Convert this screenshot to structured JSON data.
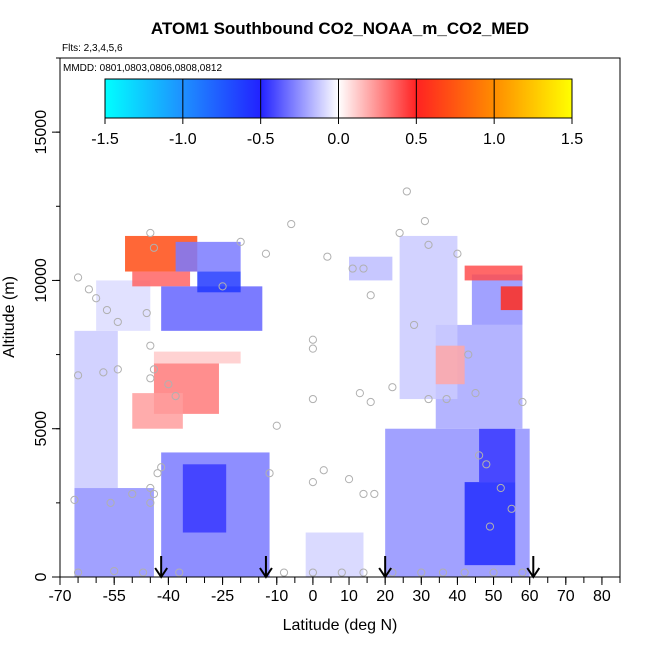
{
  "chart_data": {
    "type": "heatmap",
    "title": "ATOM1 Southbound CO2_NOAA_m_CO2_MED",
    "flights_label": "Flts: 2,3,4,5,6",
    "dates_label": "MMDD: 0801,0803,0806,0808,0812",
    "xlabel": "Latitude (deg N)",
    "ylabel": "Altitude (m)",
    "xlim": [
      -70,
      85
    ],
    "ylim": [
      0,
      17500
    ],
    "x_ticks": [
      -70,
      -55,
      -40,
      -25,
      -10,
      0,
      10,
      20,
      30,
      40,
      50,
      60,
      70,
      80
    ],
    "x_tick_labels": [
      "-70",
      "-55",
      "-40",
      "-25",
      "-10",
      "0",
      "10",
      "20",
      "30",
      "40",
      "50",
      "60",
      "70",
      "80"
    ],
    "y_ticks": [
      0,
      5000,
      10000,
      15000
    ],
    "y_tick_labels": [
      "0",
      "5000",
      "10000",
      "15000"
    ],
    "colorbar": {
      "range": [
        -1.5,
        1.5
      ],
      "ticks": [
        -1.5,
        -1.0,
        -0.5,
        0.0,
        0.5,
        1.0,
        1.5
      ],
      "tick_labels": [
        "-1.5",
        "-1.0",
        "-0.5",
        "0.0",
        "0.5",
        "1.0",
        "1.5"
      ],
      "stops": [
        {
          "v": -1.5,
          "color": "#00ffff"
        },
        {
          "v": -1.0,
          "color": "#1e90ff"
        },
        {
          "v": -0.5,
          "color": "#2222ff"
        },
        {
          "v": 0.0,
          "color": "#ffffff"
        },
        {
          "v": 0.5,
          "color": "#ff2222"
        },
        {
          "v": 1.0,
          "color": "#ff8c00"
        },
        {
          "v": 1.5,
          "color": "#ffff00"
        }
      ]
    },
    "regions": [
      {
        "lat": [
          -66,
          -44
        ],
        "alt": [
          0,
          3000
        ],
        "value": -0.25
      },
      {
        "lat": [
          -66,
          -54
        ],
        "alt": [
          3000,
          8300
        ],
        "value": -0.12
      },
      {
        "lat": [
          -60,
          -45
        ],
        "alt": [
          8300,
          10000
        ],
        "value": -0.08
      },
      {
        "lat": [
          -52,
          -32
        ],
        "alt": [
          10300,
          11500
        ],
        "value": 0.7
      },
      {
        "lat": [
          -50,
          -34
        ],
        "alt": [
          9800,
          10300
        ],
        "value": 0.35
      },
      {
        "lat": [
          -42,
          -14
        ],
        "alt": [
          8300,
          9800
        ],
        "value": -0.35
      },
      {
        "lat": [
          -32,
          -20
        ],
        "alt": [
          9600,
          10300
        ],
        "value": -0.6
      },
      {
        "lat": [
          -38,
          -20
        ],
        "alt": [
          10300,
          11300
        ],
        "value": -0.3
      },
      {
        "lat": [
          -44,
          -26
        ],
        "alt": [
          5500,
          7200
        ],
        "value": 0.3
      },
      {
        "lat": [
          -50,
          -36
        ],
        "alt": [
          5000,
          6200
        ],
        "value": 0.22
      },
      {
        "lat": [
          -44,
          -20
        ],
        "alt": [
          7200,
          7600
        ],
        "value": 0.12
      },
      {
        "lat": [
          -42,
          -12
        ],
        "alt": [
          0,
          4200
        ],
        "value": -0.3
      },
      {
        "lat": [
          -36,
          -24
        ],
        "alt": [
          1500,
          3800
        ],
        "value": -0.45
      },
      {
        "lat": [
          -2,
          14
        ],
        "alt": [
          0,
          1500
        ],
        "value": -0.1
      },
      {
        "lat": [
          20,
          60
        ],
        "alt": [
          0,
          5000
        ],
        "value": -0.25
      },
      {
        "lat": [
          42,
          56
        ],
        "alt": [
          400,
          3200
        ],
        "value": -0.55
      },
      {
        "lat": [
          46,
          56
        ],
        "alt": [
          3200,
          5000
        ],
        "value": -0.45
      },
      {
        "lat": [
          34,
          58
        ],
        "alt": [
          5000,
          8500
        ],
        "value": -0.2
      },
      {
        "lat": [
          44,
          58
        ],
        "alt": [
          8500,
          10200
        ],
        "value": -0.25
      },
      {
        "lat": [
          42,
          58
        ],
        "alt": [
          10000,
          10500
        ],
        "value": 0.4
      },
      {
        "lat": [
          52,
          58
        ],
        "alt": [
          9000,
          9800
        ],
        "value": 0.55
      },
      {
        "lat": [
          24,
          40
        ],
        "alt": [
          6000,
          11500
        ],
        "value": -0.12
      },
      {
        "lat": [
          34,
          42
        ],
        "alt": [
          6500,
          7800
        ],
        "value": 0.2
      },
      {
        "lat": [
          10,
          22
        ],
        "alt": [
          10000,
          10800
        ],
        "value": -0.15
      }
    ],
    "observations": [
      {
        "lat": -65,
        "alt": 10100
      },
      {
        "lat": -62,
        "alt": 9700
      },
      {
        "lat": -60,
        "alt": 9400
      },
      {
        "lat": -57,
        "alt": 9000
      },
      {
        "lat": -54,
        "alt": 8600
      },
      {
        "lat": -58,
        "alt": 6900
      },
      {
        "lat": -54,
        "alt": 7000
      },
      {
        "lat": -65,
        "alt": 6800
      },
      {
        "lat": -45,
        "alt": 11600
      },
      {
        "lat": -44,
        "alt": 11100
      },
      {
        "lat": -46,
        "alt": 8900
      },
      {
        "lat": -45,
        "alt": 7800
      },
      {
        "lat": -44,
        "alt": 7000
      },
      {
        "lat": -45,
        "alt": 6700
      },
      {
        "lat": -40,
        "alt": 6500
      },
      {
        "lat": -38,
        "alt": 6100
      },
      {
        "lat": -42,
        "alt": 3700
      },
      {
        "lat": -43,
        "alt": 3500
      },
      {
        "lat": -45,
        "alt": 3000
      },
      {
        "lat": -44,
        "alt": 2800
      },
      {
        "lat": -50,
        "alt": 2800
      },
      {
        "lat": -56,
        "alt": 2500
      },
      {
        "lat": -66,
        "alt": 2600
      },
      {
        "lat": -45,
        "alt": 2500
      },
      {
        "lat": -25,
        "alt": 9800
      },
      {
        "lat": -20,
        "alt": 11300
      },
      {
        "lat": -13,
        "alt": 10900
      },
      {
        "lat": -10,
        "alt": 5100
      },
      {
        "lat": -12,
        "alt": 3500
      },
      {
        "lat": -6,
        "alt": 11900
      },
      {
        "lat": 4,
        "alt": 10800
      },
      {
        "lat": 0,
        "alt": 8000
      },
      {
        "lat": 0,
        "alt": 7700
      },
      {
        "lat": 0,
        "alt": 6000
      },
      {
        "lat": 0,
        "alt": 3200
      },
      {
        "lat": 3,
        "alt": 3600
      },
      {
        "lat": 10,
        "alt": 3300
      },
      {
        "lat": 11,
        "alt": 10400
      },
      {
        "lat": 14,
        "alt": 10400
      },
      {
        "lat": 16,
        "alt": 9500
      },
      {
        "lat": 13,
        "alt": 6200
      },
      {
        "lat": 16,
        "alt": 5900
      },
      {
        "lat": 14,
        "alt": 2800
      },
      {
        "lat": 17,
        "alt": 2800
      },
      {
        "lat": 22,
        "alt": 6400
      },
      {
        "lat": 28,
        "alt": 8500
      },
      {
        "lat": 26,
        "alt": 13000
      },
      {
        "lat": 31,
        "alt": 12000
      },
      {
        "lat": 24,
        "alt": 11600
      },
      {
        "lat": 32,
        "alt": 11200
      },
      {
        "lat": 40,
        "alt": 10900
      },
      {
        "lat": 32,
        "alt": 6000
      },
      {
        "lat": 37,
        "alt": 6000
      },
      {
        "lat": 45,
        "alt": 6200
      },
      {
        "lat": 43,
        "alt": 7500
      },
      {
        "lat": 48,
        "alt": 3800
      },
      {
        "lat": 46,
        "alt": 4100
      },
      {
        "lat": 52,
        "alt": 3000
      },
      {
        "lat": 49,
        "alt": 1700
      },
      {
        "lat": 55,
        "alt": 2300
      },
      {
        "lat": 58,
        "alt": 5900
      },
      {
        "lat": -55,
        "alt": 200
      },
      {
        "lat": -47,
        "alt": 150
      },
      {
        "lat": -37,
        "alt": 150
      },
      {
        "lat": -8,
        "alt": 150
      },
      {
        "lat": 0,
        "alt": 150
      },
      {
        "lat": 8,
        "alt": 150
      },
      {
        "lat": 14,
        "alt": 150
      },
      {
        "lat": 22,
        "alt": 150
      },
      {
        "lat": 30,
        "alt": 150
      },
      {
        "lat": 36,
        "alt": 150
      },
      {
        "lat": 42,
        "alt": 150
      },
      {
        "lat": 50,
        "alt": 150
      },
      {
        "lat": 58,
        "alt": 150
      },
      {
        "lat": -65,
        "alt": 150
      }
    ],
    "arrows": [
      -42,
      -13,
      20,
      61
    ]
  }
}
